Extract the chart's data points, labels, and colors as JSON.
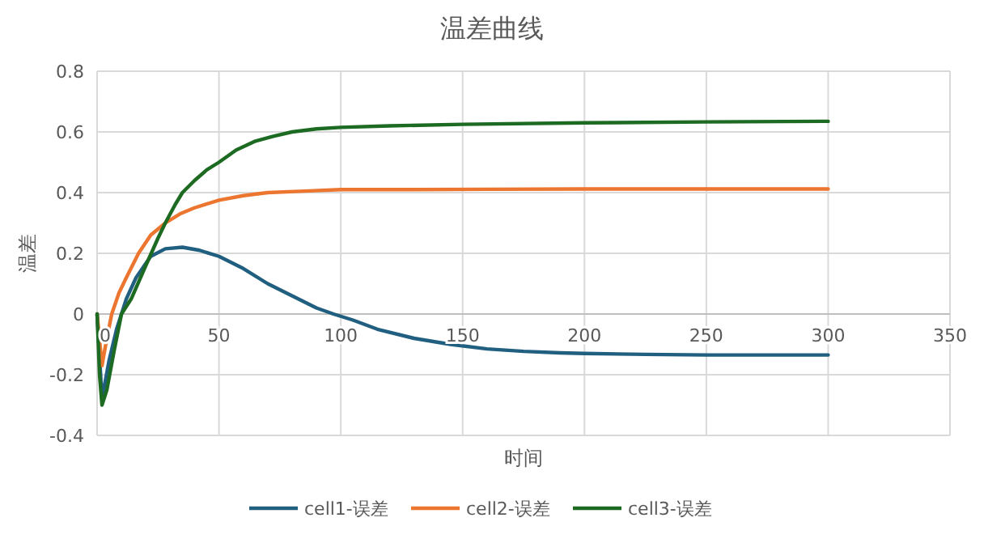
{
  "chart_data": {
    "type": "line",
    "title": "温差曲线",
    "xlabel": "时间",
    "ylabel": "温差",
    "xlim": [
      0,
      350
    ],
    "ylim": [
      -0.4,
      0.8
    ],
    "xticks": [
      0,
      50,
      100,
      150,
      200,
      250,
      300,
      350
    ],
    "yticks": [
      -0.4,
      -0.2,
      0,
      0.2,
      0.4,
      0.6,
      0.8
    ],
    "grid": true,
    "legend": "bottom",
    "marker": "none",
    "line_style": "solid",
    "series": [
      {
        "name": "cell1-误差",
        "color": "#215f80",
        "x": [
          0,
          2,
          5,
          8,
          12,
          16,
          22,
          28,
          35,
          42,
          50,
          60,
          70,
          80,
          90,
          97,
          105,
          115,
          130,
          145,
          160,
          175,
          190,
          200,
          225,
          250,
          275,
          300
        ],
        "values": [
          0,
          -0.28,
          -0.15,
          -0.05,
          0.05,
          0.12,
          0.19,
          0.215,
          0.22,
          0.21,
          0.19,
          0.15,
          0.1,
          0.06,
          0.02,
          0,
          -0.02,
          -0.05,
          -0.08,
          -0.1,
          -0.115,
          -0.123,
          -0.128,
          -0.13,
          -0.133,
          -0.135,
          -0.135,
          -0.135
        ]
      },
      {
        "name": "cell2-误差",
        "color": "#ec7630",
        "x": [
          0,
          2,
          4,
          6,
          9,
          12,
          17,
          22,
          28,
          34,
          40,
          50,
          60,
          70,
          85,
          100,
          130,
          160,
          200,
          250,
          300
        ],
        "values": [
          0,
          -0.17,
          -0.08,
          0,
          0.07,
          0.12,
          0.2,
          0.26,
          0.3,
          0.33,
          0.35,
          0.375,
          0.39,
          0.4,
          0.405,
          0.41,
          0.41,
          0.411,
          0.412,
          0.412,
          0.412
        ]
      },
      {
        "name": "cell3-误差",
        "color": "#1d6b22",
        "x": [
          0,
          1,
          2,
          4,
          7,
          10,
          14,
          20,
          25,
          28,
          32,
          35,
          40,
          45,
          50,
          57,
          65,
          72,
          80,
          90,
          100,
          120,
          150,
          200,
          250,
          300
        ],
        "values": [
          0,
          -0.2,
          -0.3,
          -0.25,
          -0.12,
          0,
          0.05,
          0.16,
          0.25,
          0.3,
          0.36,
          0.4,
          0.44,
          0.475,
          0.5,
          0.54,
          0.57,
          0.585,
          0.6,
          0.61,
          0.615,
          0.62,
          0.625,
          0.63,
          0.633,
          0.635
        ]
      }
    ]
  }
}
